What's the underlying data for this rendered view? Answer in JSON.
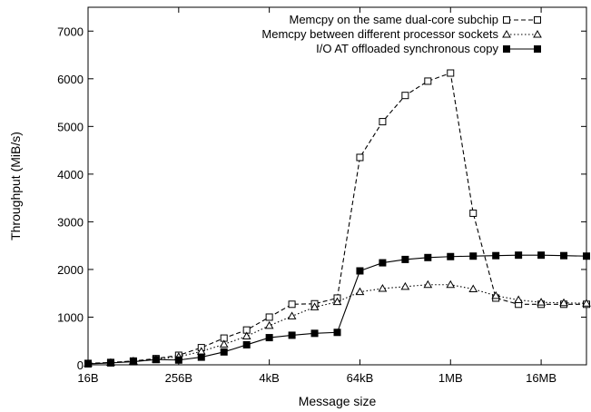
{
  "chart_data": {
    "type": "line",
    "title": "",
    "xlabel": "Message size",
    "ylabel": "Throughput (MiB/s)",
    "x_scale": "log2",
    "x_ticks": [
      "16B",
      "256B",
      "4kB",
      "64kB",
      "1MB",
      "16MB"
    ],
    "y_ticks": [
      "0",
      "1000",
      "2000",
      "3000",
      "4000",
      "5000",
      "6000",
      "7000"
    ],
    "ylim": [
      0,
      7500
    ],
    "grid": false,
    "legend_position": "top-right",
    "x": [
      "16B",
      "32B",
      "64B",
      "128B",
      "256B",
      "512B",
      "1kB",
      "2kB",
      "4kB",
      "8kB",
      "16kB",
      "32kB",
      "64kB",
      "128kB",
      "256kB",
      "512kB",
      "1MB",
      "2MB",
      "4MB",
      "8MB",
      "16MB",
      "32MB",
      "64MB"
    ],
    "series": [
      {
        "name": "Memcpy on the same dual-core subchip",
        "marker": "open-square",
        "line": "dashed",
        "values": [
          30,
          50,
          80,
          130,
          200,
          360,
          560,
          730,
          1000,
          1270,
          1280,
          1400,
          4350,
          5100,
          5650,
          5950,
          6120,
          3180,
          1400,
          1270,
          1270,
          1270,
          1270
        ]
      },
      {
        "name": "Memcpy between different processor sockets",
        "marker": "open-triangle",
        "line": "dotted",
        "values": [
          25,
          45,
          75,
          115,
          170,
          280,
          430,
          600,
          820,
          1020,
          1210,
          1320,
          1530,
          1600,
          1640,
          1680,
          1680,
          1590,
          1450,
          1360,
          1310,
          1300,
          1290
        ]
      },
      {
        "name": "I/O AT offloaded synchronous copy",
        "marker": "filled-square",
        "line": "solid",
        "values": [
          20,
          40,
          65,
          110,
          100,
          160,
          270,
          420,
          570,
          620,
          660,
          680,
          1970,
          2140,
          2210,
          2250,
          2270,
          2280,
          2290,
          2300,
          2300,
          2290,
          2280
        ]
      }
    ]
  }
}
